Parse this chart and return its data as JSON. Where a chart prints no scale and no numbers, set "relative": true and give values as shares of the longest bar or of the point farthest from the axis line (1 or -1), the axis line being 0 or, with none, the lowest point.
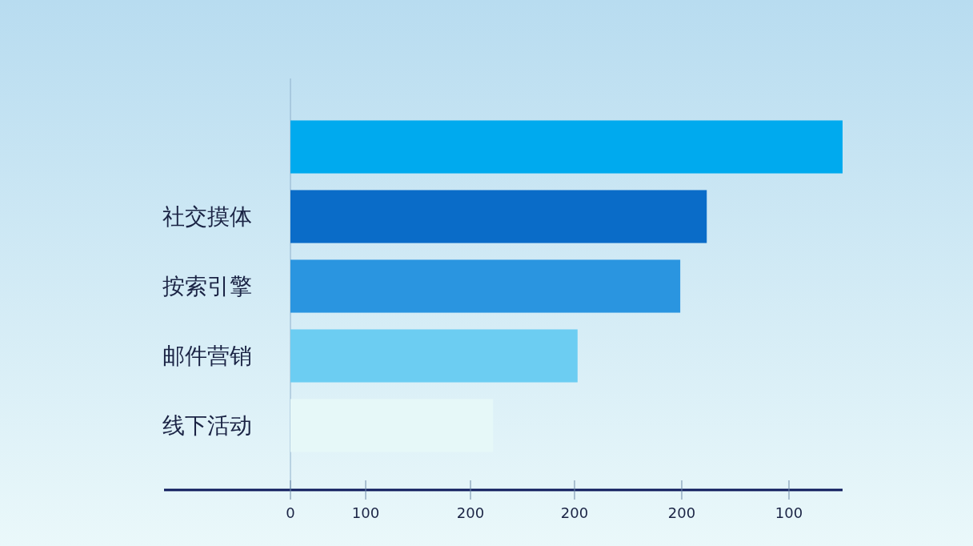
{
  "chart_data": {
    "type": "bar",
    "orientation": "horizontal",
    "relative": true,
    "categories": [
      null,
      "社交摸体",
      "按索引擎",
      "邮件营销",
      "线下活动"
    ],
    "values": [
      1,
      0.754,
      0.706,
      0.52,
      0.367
    ],
    "colors": [
      "#00aaee",
      "#0a6cc8",
      "#2a95e0",
      "#6ccdf2",
      "#e6f8f8"
    ],
    "annotations": [
      "0",
      "100",
      "200",
      "200",
      "200",
      "100"
    ],
    "grid": false
  }
}
